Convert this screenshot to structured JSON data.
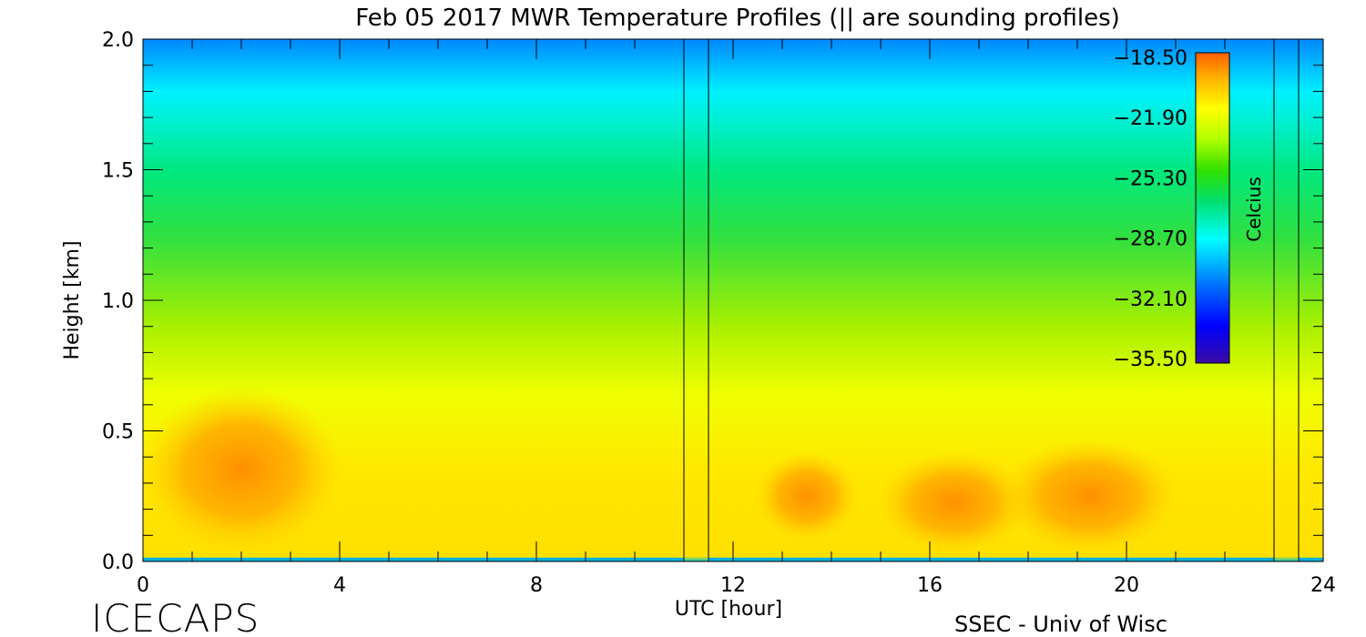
{
  "chart_data": {
    "type": "heatmap",
    "title": "Feb 05 2017 MWR Temperature Profiles (|| are sounding profiles)",
    "xlabel": "UTC [hour]",
    "ylabel": "Height [km]",
    "xlim": [
      0,
      24
    ],
    "ylim": [
      0,
      2.0
    ],
    "x_ticks": [
      "0",
      "4",
      "8",
      "12",
      "16",
      "20",
      "24"
    ],
    "y_ticks": [
      "0.0",
      "0.5",
      "1.0",
      "1.5",
      "2.0"
    ],
    "colorbar": {
      "unit": "Celcius",
      "labels": [
        "-18.50",
        "-21.90",
        "-25.30",
        "-28.70",
        "-32.10",
        "-35.50"
      ],
      "range": [
        -35.5,
        -18.5
      ],
      "colors": [
        "#3a0ca3",
        "#0000ff",
        "#0070ff",
        "#00ffff",
        "#00e060",
        "#30e000",
        "#b0ff00",
        "#ffff00",
        "#ffb000",
        "#ff6000"
      ]
    },
    "sounding_times": [
      11.0,
      11.5,
      23.0,
      23.5
    ],
    "data_gaps": [
      [
        11.0,
        11.5
      ],
      [
        23.0,
        23.5
      ]
    ],
    "warm_core_regions": [
      {
        "x_range": [
          0.5,
          3.5
        ],
        "y_range": [
          0.1,
          0.6
        ],
        "temperature": -19.5
      },
      {
        "x_range": [
          13.0,
          14.0
        ],
        "y_range": [
          0.15,
          0.35
        ],
        "temperature": -20.5
      },
      {
        "x_range": [
          15.5,
          17.5
        ],
        "y_range": [
          0.1,
          0.35
        ],
        "temperature": -20.0
      },
      {
        "x_range": [
          18.0,
          20.5
        ],
        "y_range": [
          0.1,
          0.4
        ],
        "temperature": -20.0
      }
    ]
  },
  "footer": {
    "brand": "ICECAPS",
    "credit": "SSEC - Univ of Wisc"
  }
}
